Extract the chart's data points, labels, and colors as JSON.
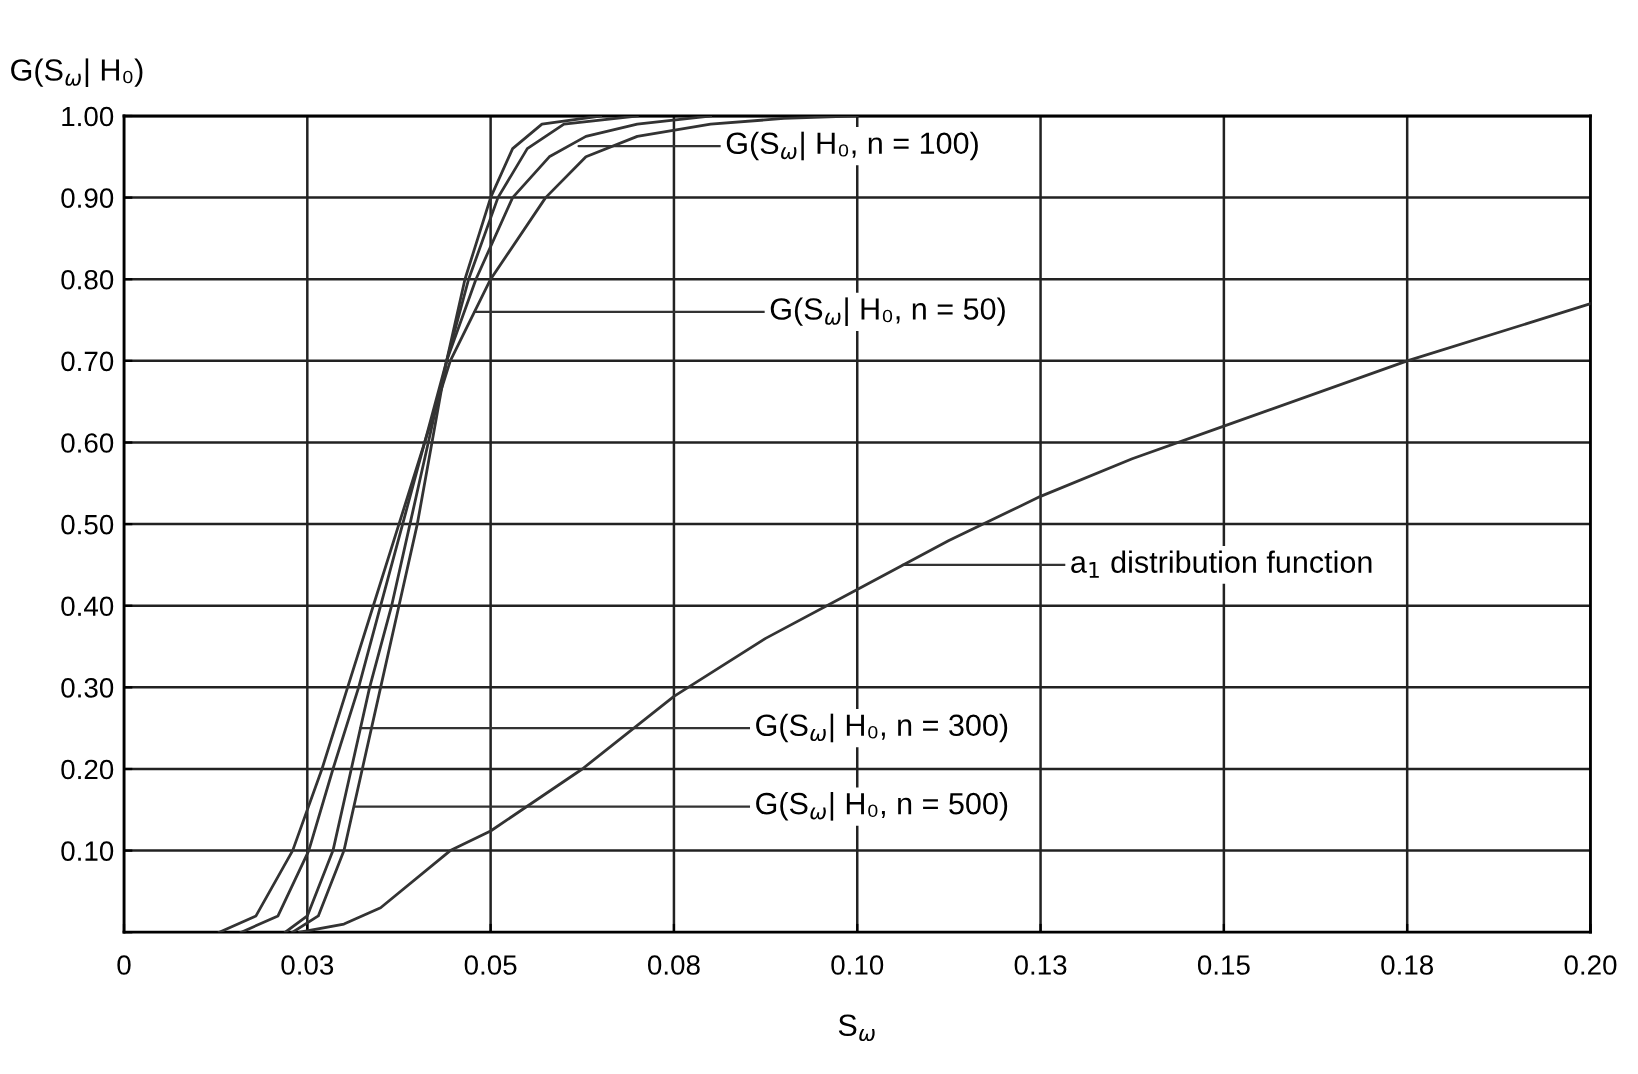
{
  "chart_data": {
    "type": "line",
    "xlabel": "S$_{ω}$",
    "ylabel": "G(S$_{ω}$| H₀)",
    "xlim": [
      0,
      0.2
    ],
    "ylim": [
      0,
      1.0
    ],
    "xticks": [
      0,
      {
        "value": 0.025,
        "label": "0.03"
      },
      {
        "value": 0.05,
        "label": "0.05"
      },
      {
        "value": 0.075,
        "label": "0.08"
      },
      {
        "value": 0.1,
        "label": "0.10"
      },
      {
        "value": 0.125,
        "label": "0.13"
      },
      {
        "value": 0.15,
        "label": "0.15"
      },
      {
        "value": 0.175,
        "label": "0.18"
      },
      {
        "value": 0.2,
        "label": "0.20"
      }
    ],
    "yticks": [
      {
        "value": 0,
        "label": null
      },
      {
        "value": 0.1,
        "label": "0.10"
      },
      {
        "value": 0.2,
        "label": "0.20"
      },
      {
        "value": 0.3,
        "label": "0.30"
      },
      {
        "value": 0.4,
        "label": "0.40"
      },
      {
        "value": 0.5,
        "label": "0.50"
      },
      {
        "value": 0.6,
        "label": "0.60"
      },
      {
        "value": 0.7,
        "label": "0.70"
      },
      {
        "value": 0.8,
        "label": "0.80"
      },
      {
        "value": 0.9,
        "label": "0.90"
      },
      {
        "value": 1.0,
        "label": "1.00"
      }
    ],
    "grid": true,
    "legend": false,
    "marker": "none",
    "line_style": "solid",
    "series": [
      {
        "color": "#333333",
        "x": [
          0.013,
          0.018,
          0.023,
          0.027,
          0.0305,
          0.034,
          0.0375,
          0.041,
          0.0445,
          0.05,
          0.0575,
          0.063,
          0.07,
          0.08,
          0.09,
          0.1
        ],
        "values": [
          0,
          0.02,
          0.1,
          0.2,
          0.3,
          0.4,
          0.5,
          0.6,
          0.7,
          0.8,
          0.9,
          0.95,
          0.975,
          0.99,
          0.997,
          1.0
        ]
      },
      {
        "color": "#333333",
        "x": [
          0.016,
          0.021,
          0.0252,
          0.0285,
          0.032,
          0.035,
          0.038,
          0.041,
          0.044,
          0.048,
          0.053,
          0.058,
          0.063,
          0.07,
          0.08
        ],
        "values": [
          0,
          0.02,
          0.1,
          0.2,
          0.3,
          0.4,
          0.5,
          0.6,
          0.7,
          0.8,
          0.9,
          0.95,
          0.975,
          0.99,
          1.0
        ]
      },
      {
        "color": "#333333",
        "x": [
          0.022,
          0.025,
          0.0285,
          0.031,
          0.0335,
          0.0365,
          0.039,
          0.0415,
          0.044,
          0.047,
          0.051,
          0.055,
          0.06,
          0.07
        ],
        "values": [
          0,
          0.02,
          0.1,
          0.2,
          0.3,
          0.4,
          0.5,
          0.6,
          0.7,
          0.8,
          0.9,
          0.96,
          0.99,
          1.0
        ]
      },
      {
        "color": "#333333",
        "x": [
          0.023,
          0.0265,
          0.03,
          0.0325,
          0.035,
          0.0375,
          0.04,
          0.042,
          0.044,
          0.0465,
          0.05,
          0.053,
          0.057,
          0.065
        ],
        "values": [
          0,
          0.02,
          0.1,
          0.2,
          0.3,
          0.4,
          0.5,
          0.6,
          0.7,
          0.8,
          0.9,
          0.96,
          0.99,
          1.0
        ]
      },
      {
        "color": "#333333",
        "x": [
          0.024,
          0.03,
          0.035,
          0.0445,
          0.05,
          0.0625,
          0.075,
          0.0875,
          0.1,
          0.1125,
          0.125,
          0.1375,
          0.15,
          0.175,
          0.2
        ],
        "values": [
          0,
          0.01,
          0.03,
          0.1,
          0.124,
          0.2,
          0.289,
          0.36,
          0.42,
          0.48,
          0.534,
          0.58,
          0.62,
          0.7,
          0.77
        ]
      }
    ],
    "annotations": [
      "G(S$_{ω}$| H₀, n = 100)",
      {
        "text": "G(S$_{ω}$| H₀, n = 50)",
        "x": 0.0478,
        "y": 0.76
      },
      {
        "text": "a$_{1}$ distribution function",
        "x": 0.1062,
        "y": 0.45
      },
      {
        "text": "G(S$_{ω}$| H₀, n = 300)",
        "x": 0.0322,
        "y": 0.25
      },
      {
        "text": "G(S$_{ω}$| H₀, n = 500)",
        "x": 0.0314,
        "y": 0.154
      }
    ]
  }
}
